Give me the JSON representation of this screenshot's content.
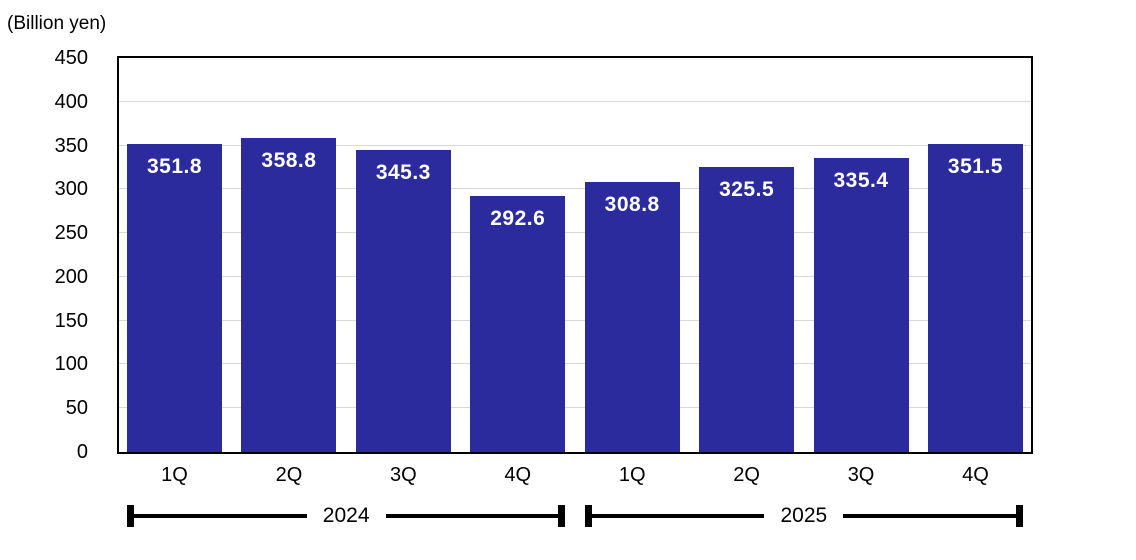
{
  "colors": {
    "bar_fill": "#2B2B9E",
    "bar_value_text": "#FFFFFF",
    "gridline": "#D9D9D9",
    "axis_border": "#000000",
    "text": "#000000",
    "background": "#FFFFFF"
  },
  "chart_data": {
    "type": "bar",
    "title": "",
    "unit_label": "(Billion yen)",
    "categories": [
      "1Q",
      "2Q",
      "3Q",
      "4Q",
      "1Q",
      "2Q",
      "3Q",
      "4Q"
    ],
    "values": [
      351.8,
      358.8,
      345.3,
      292.6,
      308.8,
      325.5,
      335.4,
      351.5
    ],
    "value_labels": [
      "351.8",
      "358.8",
      "345.3",
      "292.6",
      "308.8",
      "325.5",
      "335.4",
      "351.5"
    ],
    "year_groups": [
      {
        "label": "2024",
        "start_index": 0,
        "end_index": 3
      },
      {
        "label": "2025",
        "start_index": 4,
        "end_index": 7
      }
    ],
    "ylim": [
      0,
      450
    ],
    "yticks": [
      0,
      50,
      100,
      150,
      200,
      250,
      300,
      350,
      400,
      450
    ],
    "grid": true,
    "legend_position": "none"
  }
}
